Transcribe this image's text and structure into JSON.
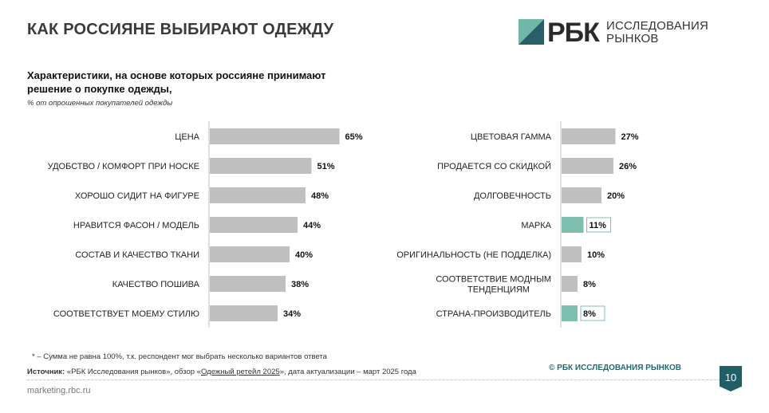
{
  "header": {
    "title": "КАК РОССИЯНЕ ВЫБИРАЮТ ОДЕЖДУ",
    "logo_brand": "РБК",
    "logo_line1": "ИССЛЕДОВАНИЯ",
    "logo_line2": "РЫНКОВ"
  },
  "chart_subtitle": "Характеристики, на основе которых россияне принимают решение о покупке одежды,",
  "chart_unit": "% от опрошенных покупателей одежды",
  "colors": {
    "default_bar": "#bfbfbf",
    "highlight_bar": "#7fbfaf",
    "accent": "#215e66"
  },
  "chart_data": [
    {
      "type": "bar",
      "orientation": "horizontal",
      "categories": [
        "ЦЕНА",
        "УДОБСТВО / КОМФОРТ ПРИ НОСКЕ",
        "ХОРОШО СИДИТ НА ФИГУРЕ",
        "НРАВИТСЯ ФАСОН / МОДЕЛЬ",
        "СОСТАВ И КАЧЕСТВО ТКАНИ",
        "КАЧЕСТВО ПОШИВА",
        "СООТВЕТСТВУЕТ МОЕМУ СТИЛЮ"
      ],
      "values": [
        65,
        51,
        48,
        44,
        40,
        38,
        34
      ],
      "value_labels": [
        "65%",
        "51%",
        "48%",
        "44%",
        "40%",
        "38%",
        "34%"
      ],
      "highlight": [
        false,
        false,
        false,
        false,
        false,
        false,
        false
      ],
      "xlim": [
        0,
        100
      ]
    },
    {
      "type": "bar",
      "orientation": "horizontal",
      "categories": [
        "ЦВЕТОВАЯ ГАММА",
        "ПРОДАЕТСЯ СО СКИДКОЙ",
        "ДОЛГОВЕЧНОСТЬ",
        "МАРКА",
        "ОРИГИНАЛЬНОСТЬ (НЕ ПОДДЕЛКА)",
        "СООТВЕТСТВИЕ МОДНЫМ|ТЕНДЕНЦИЯМ",
        "СТРАНА-ПРОИЗВОДИТЕЛЬ"
      ],
      "values": [
        27,
        26,
        20,
        11,
        10,
        8,
        8
      ],
      "value_labels": [
        "27%",
        "26%",
        "20%",
        "11%",
        "10%",
        "8%",
        "8%"
      ],
      "highlight": [
        false,
        false,
        false,
        true,
        false,
        false,
        true
      ],
      "xlim": [
        0,
        100
      ]
    }
  ],
  "footer": {
    "footnote": "* – Сумма не равна 100%, т.к. респондент мог выбрать несколько вариантов ответа",
    "source_label": "Источник:",
    "source_part1": " «РБК Исследования рынков»,  обзор «",
    "source_link": "Одежный ретейл 2025",
    "source_part2": "», дата актуализации – март 2025 года",
    "copyright": "© РБК ИССЛЕДОВАНИЯ РЫНКОВ",
    "site": "marketing.rbc.ru",
    "page_number": "10"
  }
}
